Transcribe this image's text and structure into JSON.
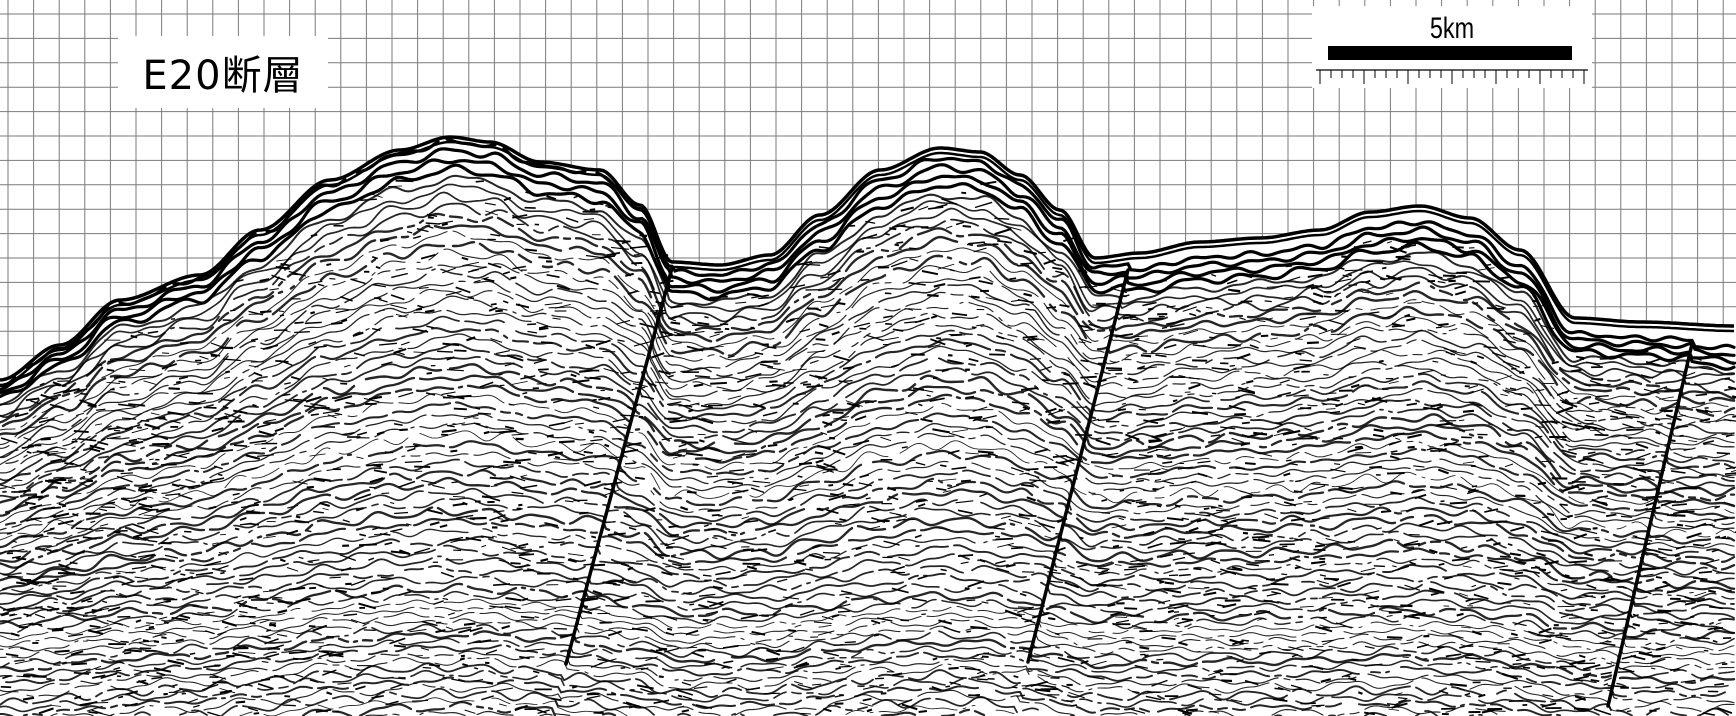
{
  "profile": {
    "title": "E20断層",
    "scale_label": "5km",
    "background_color": "#ffffff",
    "grid_color": "#7a7a7a",
    "reflector_color": "#000000",
    "fault_color": "#000000",
    "fault_count": 3
  }
}
